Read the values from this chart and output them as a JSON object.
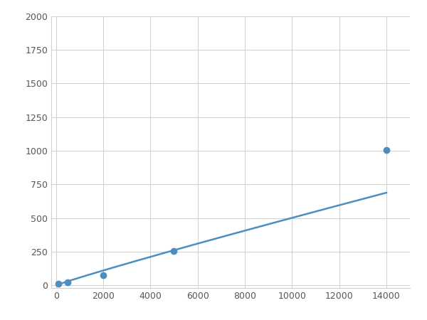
{
  "x_data": [
    100,
    500,
    2000,
    5000,
    14000
  ],
  "y_data": [
    10,
    20,
    75,
    255,
    1005
  ],
  "line_color": "#4a8fc0",
  "marker_color": "#4a8fc0",
  "marker_size": 6,
  "line_width": 1.8,
  "xlim": [
    -200,
    15000
  ],
  "ylim": [
    -20,
    2000
  ],
  "xticks": [
    0,
    2000,
    4000,
    6000,
    8000,
    10000,
    12000,
    14000
  ],
  "yticks": [
    0,
    250,
    500,
    750,
    1000,
    1250,
    1500,
    1750,
    2000
  ],
  "grid_color": "#d0d0d0",
  "background_color": "#ffffff",
  "figure_background": "#ffffff"
}
